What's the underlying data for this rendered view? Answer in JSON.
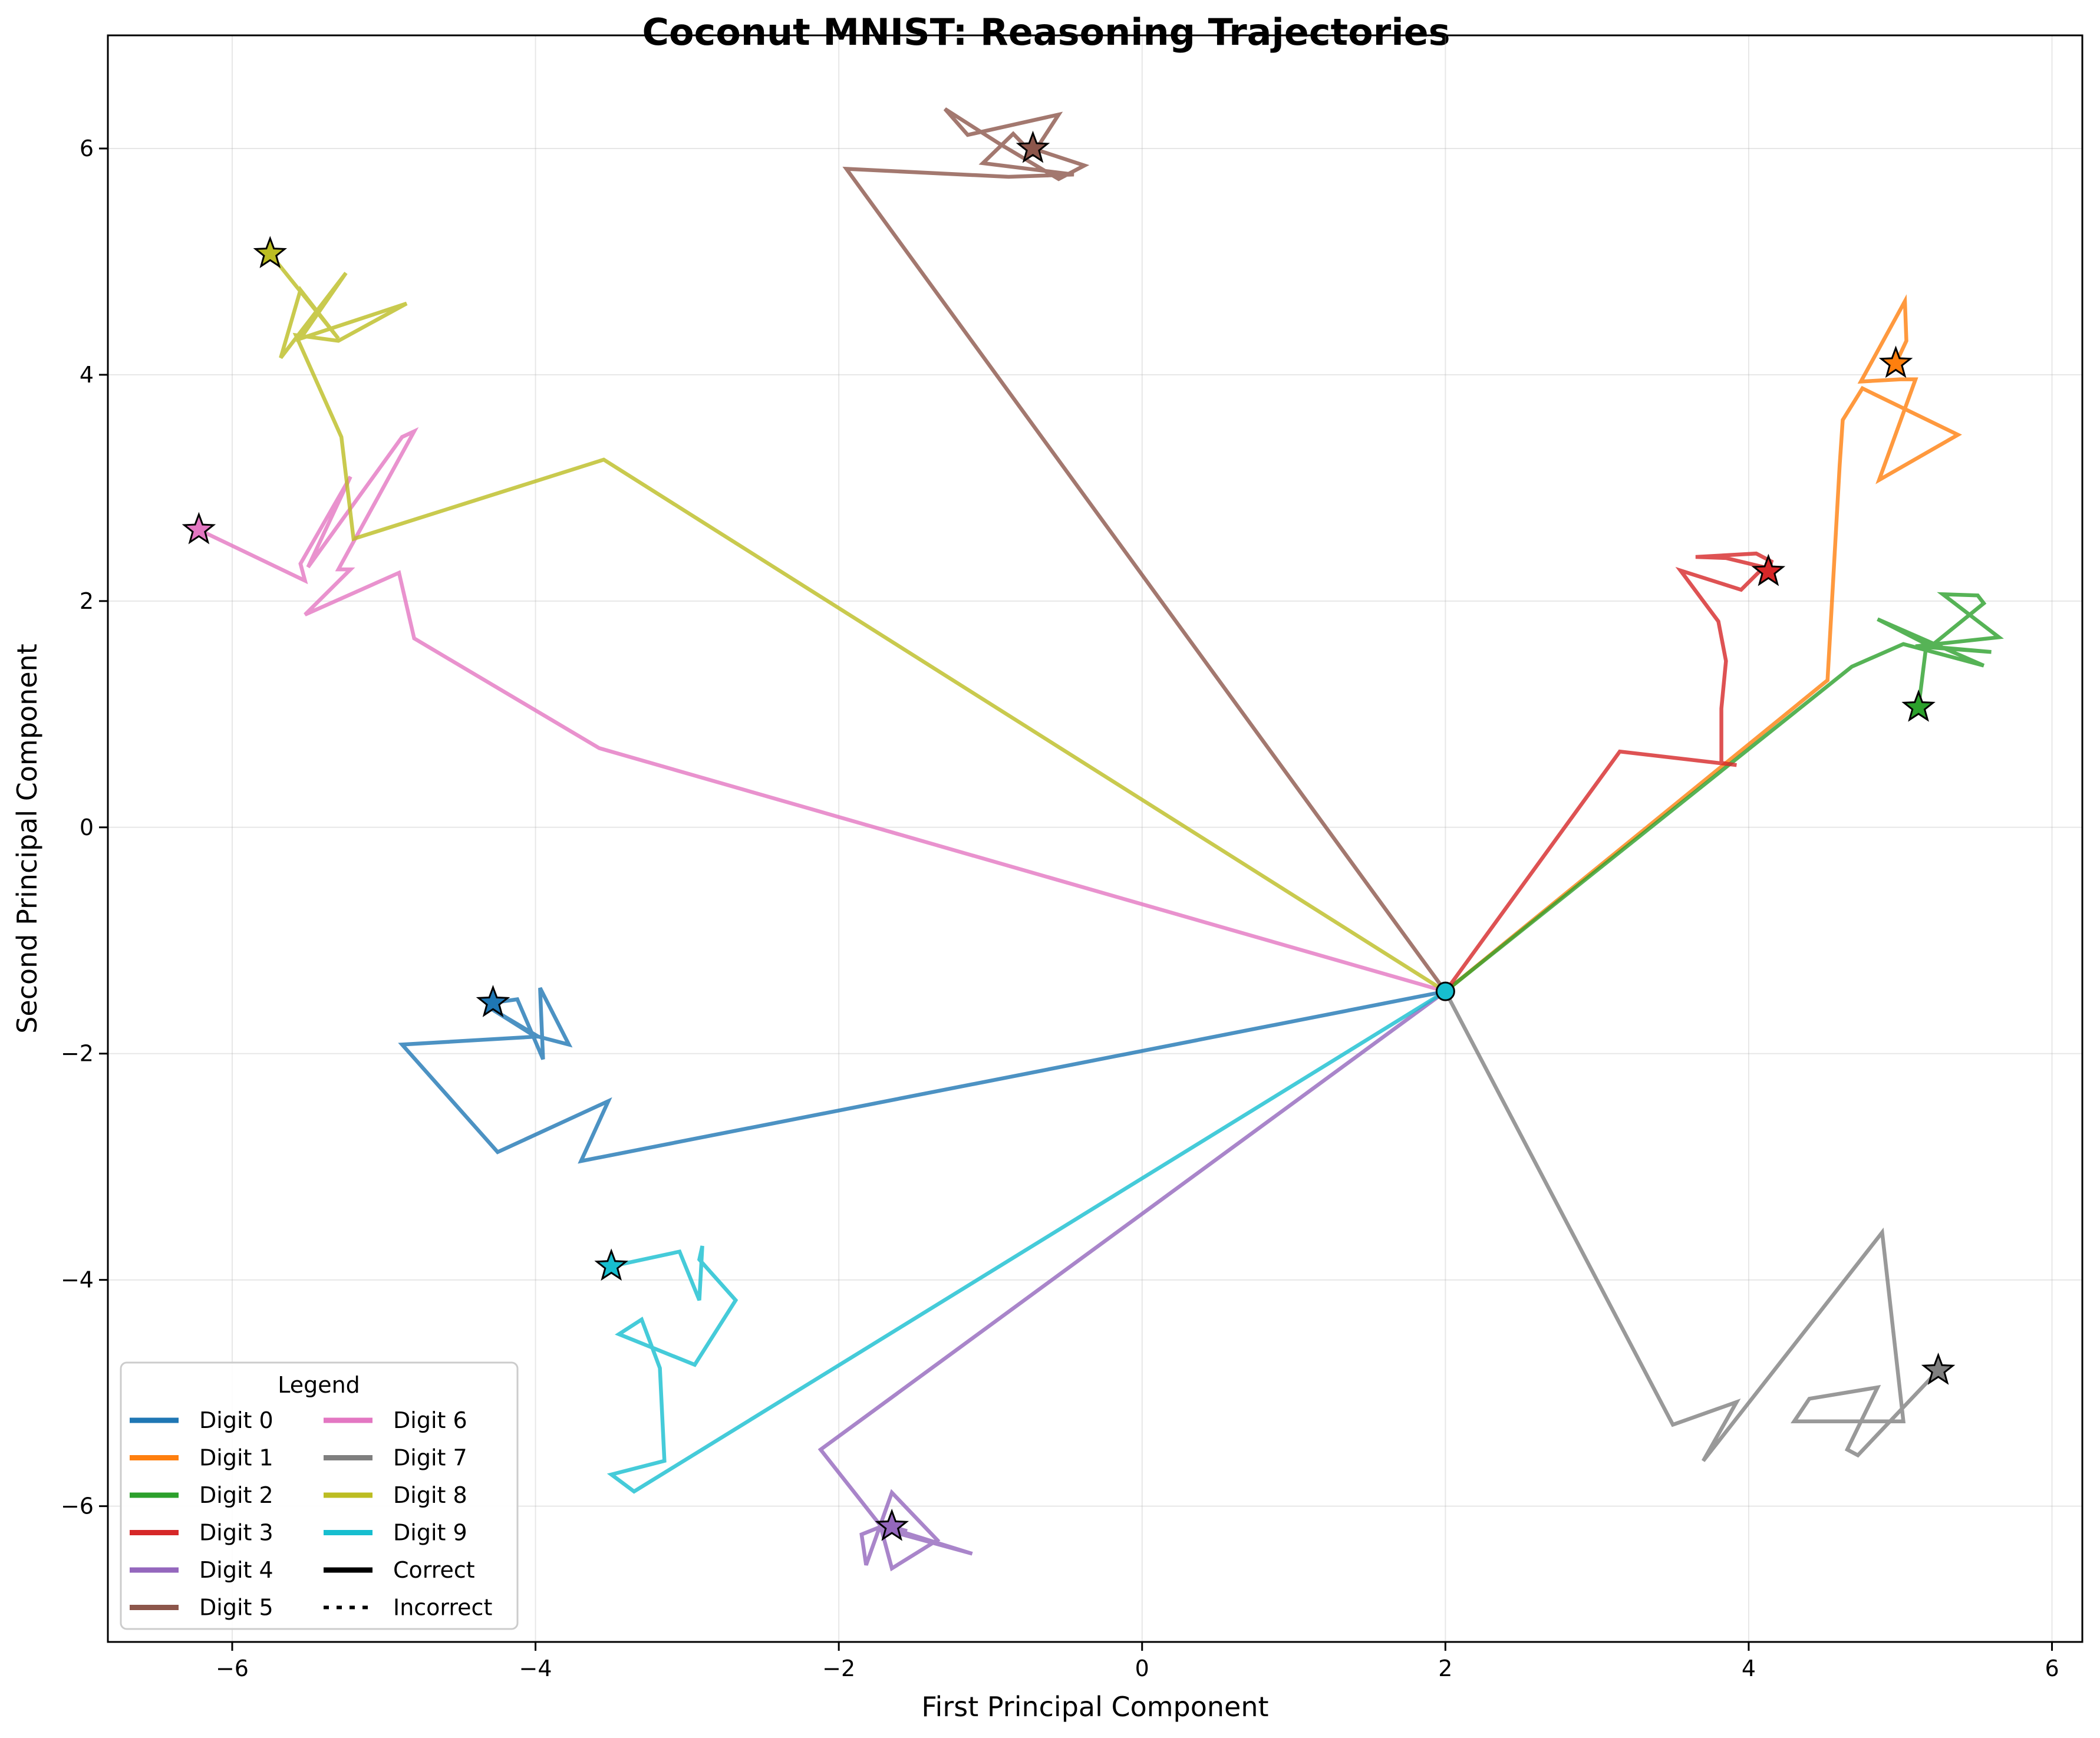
{
  "chart_data": {
    "type": "line",
    "title": "Coconut MNIST: Reasoning Trajectories",
    "xlabel": "First Principal Component",
    "ylabel": "Second Principal Component",
    "xlim": [
      -6.82,
      6.2
    ],
    "ylim": [
      -7.2,
      7.0
    ],
    "xticks": [
      -6,
      -4,
      -2,
      0,
      2,
      4,
      6
    ],
    "yticks": [
      -6,
      -4,
      -2,
      0,
      2,
      4,
      6
    ],
    "xtick_labels": [
      "−6",
      "−4",
      "−2",
      "0",
      "2",
      "4",
      "6"
    ],
    "ytick_labels": [
      "−6",
      "−4",
      "−2",
      "0",
      "2",
      "4",
      "6"
    ],
    "grid": true,
    "legend": {
      "title": "Legend",
      "placement": "bottom-left",
      "columns": 2,
      "extra_entries": [
        {
          "label": "Correct",
          "style": "solid"
        },
        {
          "label": "Incorrect",
          "style": "dotted"
        }
      ]
    },
    "origin": {
      "x": 2.0,
      "y": -1.45
    },
    "series": [
      {
        "name": "Digit 0",
        "color": "#1f77b4",
        "end_marker": "star",
        "x": [
          2.0,
          -3.7,
          -3.52,
          -4.25,
          -4.88,
          -4.0,
          -4.32,
          -3.98,
          -3.78,
          -3.97,
          -3.95,
          -4.12,
          -4.28
        ],
        "y": [
          -1.45,
          -2.95,
          -2.42,
          -2.87,
          -1.92,
          -1.85,
          -1.58,
          -1.85,
          -1.92,
          -1.42,
          -2.05,
          -1.52,
          -1.55
        ]
      },
      {
        "name": "Digit 1",
        "color": "#ff7f0e",
        "end_marker": "star",
        "x": [
          2.0,
          4.52,
          4.6,
          4.62,
          4.75,
          5.38,
          4.86,
          5.1,
          5.0,
          4.74,
          5.03,
          5.04,
          4.97
        ],
        "y": [
          -1.45,
          1.3,
          3.2,
          3.6,
          3.88,
          3.47,
          3.07,
          3.96,
          3.96,
          3.94,
          4.65,
          4.3,
          4.1
        ]
      },
      {
        "name": "Digit 2",
        "color": "#2ca02c",
        "end_marker": "star",
        "x": [
          2.0,
          4.68,
          5.02,
          5.55,
          4.85,
          5.2,
          5.55,
          5.51,
          5.28,
          5.65,
          5.1,
          5.6,
          5.17,
          5.12
        ],
        "y": [
          -1.45,
          1.42,
          1.62,
          1.43,
          1.84,
          1.6,
          1.98,
          2.05,
          2.06,
          1.68,
          1.6,
          1.55,
          1.6,
          1.06
        ]
      },
      {
        "name": "Digit 3",
        "color": "#d62728",
        "end_marker": "star",
        "x": [
          2.0,
          3.15,
          3.92,
          3.82,
          3.82,
          3.85,
          3.8,
          3.55,
          3.95,
          4.1,
          3.85,
          3.65,
          4.05,
          4.15,
          4.13
        ],
        "y": [
          -1.45,
          0.67,
          0.55,
          0.57,
          1.05,
          1.47,
          1.82,
          2.27,
          2.1,
          2.3,
          2.38,
          2.39,
          2.42,
          2.35,
          2.26
        ]
      },
      {
        "name": "Digit 4",
        "color": "#9467bd",
        "end_marker": "star",
        "x": [
          2.0,
          -2.12,
          -1.72,
          -1.85,
          -1.82,
          -1.65,
          -1.35,
          -1.65,
          -1.72,
          -1.12,
          -1.72,
          -1.55,
          -1.65
        ],
        "y": [
          -1.45,
          -5.5,
          -6.18,
          -6.25,
          -6.52,
          -5.88,
          -6.3,
          -6.55,
          -6.2,
          -6.42,
          -6.17,
          -6.22,
          -6.18
        ]
      },
      {
        "name": "Digit 5",
        "color": "#8c564b",
        "end_marker": "star",
        "x": [
          2.0,
          -1.95,
          -0.88,
          -0.45,
          -1.05,
          -0.85,
          -0.72,
          -0.55,
          -1.15,
          -1.3,
          -0.95,
          -0.55,
          -0.38,
          -0.72
        ],
        "y": [
          -1.45,
          5.82,
          5.75,
          5.77,
          5.87,
          6.13,
          5.95,
          6.3,
          6.12,
          6.35,
          6.05,
          5.73,
          5.85,
          6.0
        ]
      },
      {
        "name": "Digit 6",
        "color": "#e377c2",
        "end_marker": "star",
        "x": [
          2.0,
          -3.58,
          -4.8,
          -4.9,
          -5.52,
          -5.22,
          -5.3,
          -4.8,
          -4.88,
          -5.5,
          -5.22,
          -5.55,
          -5.52,
          -6.22
        ],
        "y": [
          -1.45,
          0.7,
          1.67,
          2.25,
          1.88,
          2.28,
          2.28,
          3.5,
          3.45,
          2.3,
          3.1,
          2.33,
          2.18,
          2.63
        ]
      },
      {
        "name": "Digit 7",
        "color": "#7f7f7f",
        "end_marker": "star",
        "x": [
          2.0,
          3.5,
          3.92,
          3.7,
          4.88,
          5.02,
          4.3,
          4.4,
          4.85,
          4.65,
          4.72,
          5.25
        ],
        "y": [
          -1.45,
          -5.28,
          -5.08,
          -5.6,
          -3.58,
          -5.25,
          -5.25,
          -5.05,
          -4.95,
          -5.5,
          -5.55,
          -4.8
        ]
      },
      {
        "name": "Digit 8",
        "color": "#bcbd22",
        "end_marker": "star",
        "x": [
          2.0,
          -3.55,
          -5.2,
          -5.28,
          -5.58,
          -5.3,
          -4.85,
          -5.55,
          -5.25,
          -5.68,
          -5.55,
          -5.3,
          -5.75
        ],
        "y": [
          -1.45,
          3.25,
          2.55,
          3.45,
          4.35,
          4.3,
          4.63,
          4.32,
          4.9,
          4.15,
          4.75,
          4.32,
          5.07
        ]
      },
      {
        "name": "Digit 9",
        "color": "#17becf",
        "end_marker": "star",
        "x": [
          2.0,
          -3.35,
          -3.5,
          -3.15,
          -3.18,
          -3.3,
          -3.45,
          -2.95,
          -2.68,
          -2.92,
          -2.9,
          -2.92,
          -3.05,
          -3.5
        ],
        "y": [
          -1.45,
          -5.87,
          -5.72,
          -5.6,
          -4.78,
          -4.35,
          -4.48,
          -4.75,
          -4.18,
          -3.82,
          -3.7,
          -4.18,
          -3.75,
          -3.88
        ]
      }
    ]
  }
}
